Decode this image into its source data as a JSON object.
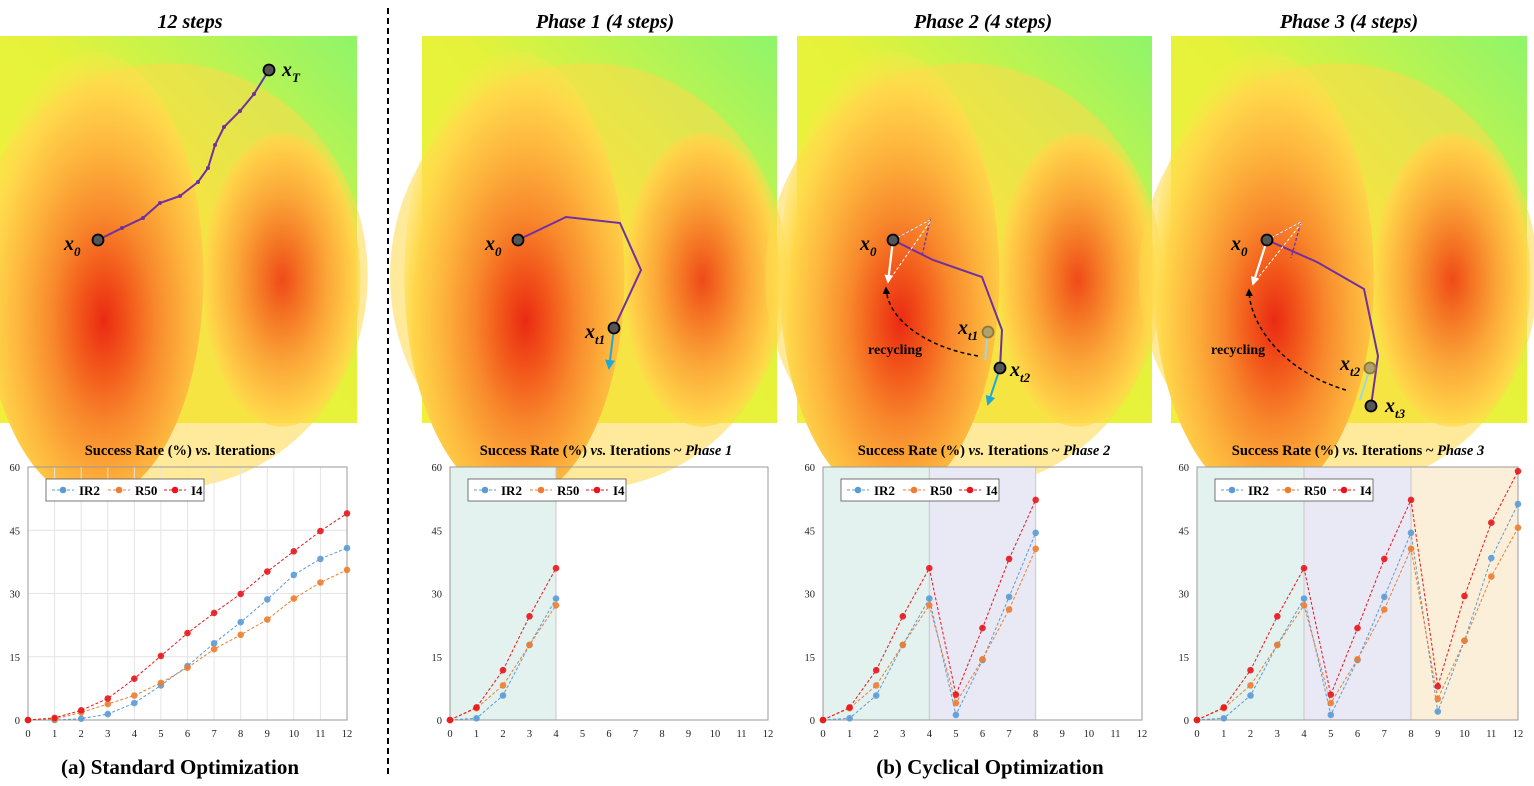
{
  "panels": [
    {
      "title": "12 steps",
      "point_labels": [
        "x0",
        "xT"
      ]
    },
    {
      "title_main": "Phase 1",
      "title_rest": " (4 steps)",
      "point_labels": [
        "x0",
        "xt1"
      ]
    },
    {
      "title_main": "Phase 2",
      "title_rest": "  (4 steps)",
      "point_labels": [
        "x0",
        "xt1",
        "xt2"
      ],
      "annotation": "recycling"
    },
    {
      "title_main": "Phase 3",
      "title_rest": " (4 steps)",
      "point_labels": [
        "x0",
        "xt2",
        "xt3"
      ],
      "annotation": "recycling"
    }
  ],
  "captions": {
    "a": "(a) Standard Optimization",
    "b": "(b) Cyclical Optimization"
  },
  "colors": {
    "IR2": "#5b9bd5",
    "R50": "#ed7d31",
    "I4": "#e8161c",
    "trajectory": "#7030a0",
    "gradient": "#1fa9d6",
    "phase1_bg": "#e3f1ef",
    "phase2_bg": "#e9e8f5",
    "phase3_bg": "#fcefd9"
  },
  "chart_data": [
    {
      "type": "line",
      "title_main": "Success Rate (%) ",
      "title_vs": "vs.",
      "title_rest": " Iterations",
      "title_phase": "",
      "x": [
        0,
        1,
        2,
        3,
        4,
        5,
        6,
        7,
        8,
        9,
        10,
        11,
        12
      ],
      "xticks": [
        "0",
        "1",
        "2",
        "3",
        "4",
        "5",
        "6",
        "7",
        "8",
        "9",
        "10",
        "11",
        "12"
      ],
      "yticks": [
        "0",
        "15",
        "30",
        "45",
        "60"
      ],
      "xlim": [
        0,
        12
      ],
      "ylim": [
        0,
        60
      ],
      "legend": "top-left",
      "grid": true,
      "phases": [],
      "series": [
        {
          "name": "IR2",
          "segments": [
            [
              0,
              0,
              0.3,
              1.4,
              4,
              8.2,
              12.8,
              18.2,
              23.2,
              28.6,
              34.4,
              38.2,
              40.8
            ]
          ]
        },
        {
          "name": "R50",
          "segments": [
            [
              0,
              0.2,
              1.8,
              3.8,
              5.8,
              8.8,
              12.4,
              16.8,
              20.2,
              23.8,
              28.8,
              32.6,
              35.6
            ]
          ]
        },
        {
          "name": "I4",
          "segments": [
            [
              0,
              0.5,
              2.3,
              5.1,
              9.8,
              15.2,
              20.6,
              25.4,
              29.9,
              35.2,
              40,
              44.8,
              49
            ]
          ]
        }
      ]
    },
    {
      "type": "line",
      "title_main": "Success Rate (%) ",
      "title_vs": "vs.",
      "title_rest": " Iterations ~ ",
      "title_phase": "Phase 1",
      "x": [
        0,
        1,
        2,
        3,
        4,
        5,
        6,
        7,
        8,
        9,
        10,
        11,
        12
      ],
      "xticks": [
        "0",
        "1",
        "2",
        "3",
        "4",
        "5",
        "6",
        "7",
        "8",
        "9",
        "10",
        "11",
        "12"
      ],
      "yticks": [
        "0",
        "15",
        "30",
        "45",
        "60"
      ],
      "xlim": [
        0,
        12
      ],
      "ylim": [
        0,
        60
      ],
      "legend": "top-left",
      "grid": false,
      "phases": [
        [
          0,
          4,
          "phase1_bg"
        ]
      ],
      "series": [
        {
          "name": "IR2",
          "segments": [
            [
              0,
              0.4,
              5.8,
              17.8,
              28.8
            ]
          ]
        },
        {
          "name": "R50",
          "segments": [
            [
              0,
              2.8,
              8.2,
              17.8,
              27.2
            ]
          ]
        },
        {
          "name": "I4",
          "segments": [
            [
              0,
              3,
              11.8,
              24.6,
              36
            ]
          ]
        }
      ]
    },
    {
      "type": "line",
      "title_main": "Success Rate (%) ",
      "title_vs": "vs.",
      "title_rest": " Iterations ~ ",
      "title_phase": "Phase 2",
      "x": [
        0,
        1,
        2,
        3,
        4,
        5,
        6,
        7,
        8,
        9,
        10,
        11,
        12
      ],
      "xticks": [
        "0",
        "1",
        "2",
        "3",
        "4",
        "5",
        "6",
        "7",
        "8",
        "9",
        "10",
        "11",
        "12"
      ],
      "yticks": [
        "0",
        "15",
        "30",
        "45",
        "60"
      ],
      "xlim": [
        0,
        12
      ],
      "ylim": [
        0,
        60
      ],
      "legend": "top-left",
      "grid": false,
      "phases": [
        [
          0,
          4,
          "phase1_bg"
        ],
        [
          4,
          8,
          "phase2_bg"
        ]
      ],
      "series": [
        {
          "name": "IR2",
          "segments": [
            [
              0,
              0.4,
              5.8,
              17.8,
              28.8,
              1.2,
              14.2,
              29.2,
              44.4
            ]
          ]
        },
        {
          "name": "R50",
          "segments": [
            [
              0,
              2.8,
              8.2,
              17.8,
              27.2,
              4,
              14.4,
              26.2,
              40.6
            ]
          ]
        },
        {
          "name": "I4",
          "segments": [
            [
              0,
              3,
              11.8,
              24.6,
              36,
              6,
              21.8,
              38.2,
              52.2
            ]
          ]
        }
      ]
    },
    {
      "type": "line",
      "title_main": "Success Rate (%) ",
      "title_vs": "vs.",
      "title_rest": " Iterations ~ ",
      "title_phase": "Phase 3",
      "x": [
        0,
        1,
        2,
        3,
        4,
        5,
        6,
        7,
        8,
        9,
        10,
        11,
        12
      ],
      "xticks": [
        "0",
        "1",
        "2",
        "3",
        "4",
        "5",
        "6",
        "7",
        "8",
        "9",
        "10",
        "11",
        "12"
      ],
      "yticks": [
        "0",
        "15",
        "30",
        "45",
        "60"
      ],
      "xlim": [
        0,
        12
      ],
      "ylim": [
        0,
        60
      ],
      "legend": "top-left",
      "grid": false,
      "phases": [
        [
          0,
          4,
          "phase1_bg"
        ],
        [
          4,
          8,
          "phase2_bg"
        ],
        [
          8,
          12,
          "phase3_bg"
        ]
      ],
      "series": [
        {
          "name": "IR2",
          "segments": [
            [
              0,
              0.4,
              5.8,
              17.8,
              28.8,
              1.2,
              14.2,
              29.2,
              44.4,
              2,
              18.8,
              38.4,
              51.2
            ]
          ]
        },
        {
          "name": "R50",
          "segments": [
            [
              0,
              2.8,
              8.2,
              17.8,
              27.2,
              4,
              14.4,
              26.2,
              40.6,
              5,
              18.8,
              34,
              45.6
            ]
          ]
        },
        {
          "name": "I4",
          "segments": [
            [
              0,
              3,
              11.8,
              24.6,
              36,
              6,
              21.8,
              38.2,
              52.2,
              8,
              29.4,
              46.8,
              59
            ]
          ]
        }
      ]
    }
  ]
}
